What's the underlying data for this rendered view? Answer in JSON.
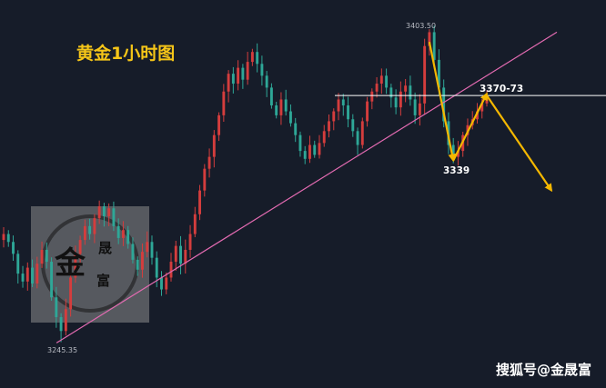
{
  "title": "黄金1小时图",
  "watermark": {
    "logo_big": "金",
    "logo_small_1": "晟",
    "logo_small_2": "富",
    "site": "搜狐号@金晟富"
  },
  "chart_data": {
    "type": "candlestick",
    "title": "黄金1小时图",
    "instrument": "黄金",
    "timeframe": "1小时",
    "price_range": [
      3230,
      3410
    ],
    "high_label": "3403.50",
    "low_label": "3245.35",
    "high": 3403.5,
    "low": 3245.35,
    "colors": {
      "up": "#d43d3d",
      "down": "#2ea797",
      "background": "#161c29",
      "trendline": "#e46bb2",
      "resistance": "#ffffff",
      "arrow": "#f5b800"
    },
    "trendline": {
      "from_price": 3245,
      "to_price": 3402
    },
    "resistance": {
      "price": 3370,
      "label": "3370-73"
    },
    "support": {
      "price": 3339,
      "label": "3339"
    },
    "closes": [
      3300,
      3296,
      3290,
      3280,
      3276,
      3283,
      3275,
      3285,
      3292,
      3286,
      3268,
      3258,
      3251,
      3262,
      3278,
      3290,
      3297,
      3304,
      3300,
      3308,
      3314,
      3309,
      3313,
      3304,
      3298,
      3302,
      3295,
      3287,
      3282,
      3291,
      3296,
      3288,
      3278,
      3272,
      3278,
      3286,
      3294,
      3285,
      3292,
      3300,
      3310,
      3322,
      3333,
      3339,
      3350,
      3360,
      3372,
      3381,
      3376,
      3384,
      3378,
      3387,
      3392,
      3386,
      3380,
      3374,
      3365,
      3360,
      3368,
      3362,
      3356,
      3350,
      3342,
      3338,
      3345,
      3340,
      3346,
      3352,
      3357,
      3362,
      3368,
      3365,
      3358,
      3352,
      3345,
      3357,
      3367,
      3372,
      3376,
      3380,
      3374,
      3369,
      3364,
      3372,
      3375,
      3368,
      3360,
      3366,
      3395,
      3402,
      3388,
      3374,
      3357,
      3345,
      3339,
      3342,
      3350,
      3355,
      3358,
      3362,
      3366,
      3370
    ],
    "forecast_path": [
      {
        "bars_after": 0,
        "price": 3370
      },
      {
        "bars_after": 12,
        "price": 3322
      }
    ]
  }
}
